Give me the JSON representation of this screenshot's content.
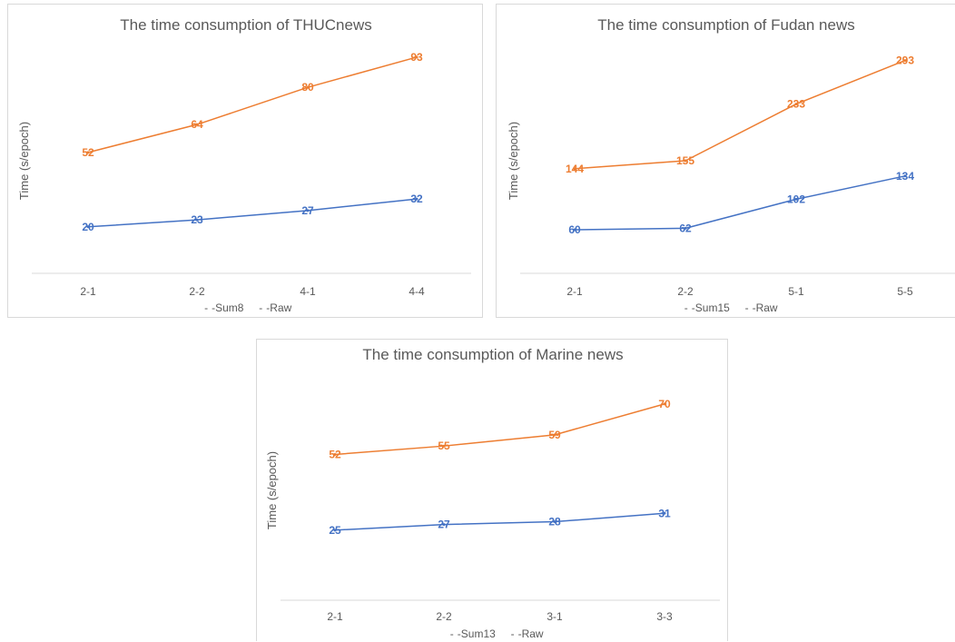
{
  "colors": {
    "sum": "#4472c4",
    "raw": "#ed7d31",
    "axis": "#d9d9d9",
    "text": "#595959"
  },
  "chart_data": [
    {
      "type": "line",
      "title": "The time consumption of THUCnews",
      "ylabel": "Time (s/epoch)",
      "xlabel": "",
      "categories": [
        "2-1",
        "2-2",
        "4-1",
        "4-4"
      ],
      "ylim": [
        0,
        100
      ],
      "grid": false,
      "legend": "bottom",
      "series": [
        {
          "name": "Sum8",
          "legend_label": "- -Sum8",
          "color": "#4472c4",
          "values": [
            20,
            23,
            27,
            32
          ]
        },
        {
          "name": "Raw",
          "legend_label": "- -Raw",
          "color": "#ed7d31",
          "values": [
            52,
            64,
            80,
            93
          ]
        }
      ]
    },
    {
      "type": "line",
      "title": "The time consumption of Fudan news",
      "ylabel": "Time (s/epoch)",
      "xlabel": "",
      "categories": [
        "2-1",
        "2-2",
        "5-1",
        "5-5"
      ],
      "ylim": [
        0,
        320
      ],
      "grid": false,
      "legend": "bottom",
      "series": [
        {
          "name": "Sum15",
          "legend_label": "- -Sum15",
          "color": "#4472c4",
          "values": [
            60,
            62,
            102,
            134
          ]
        },
        {
          "name": "Raw",
          "legend_label": "- -Raw",
          "color": "#ed7d31",
          "values": [
            144,
            155,
            233,
            293
          ]
        }
      ]
    },
    {
      "type": "line",
      "title": "The time consumption of Marine news",
      "ylabel": "Time (s/epoch)",
      "xlabel": "",
      "categories": [
        "2-1",
        "2-2",
        "3-1",
        "3-3"
      ],
      "ylim": [
        0,
        80
      ],
      "grid": false,
      "legend": "bottom",
      "series": [
        {
          "name": "Sum13",
          "legend_label": "- -Sum13",
          "color": "#4472c4",
          "values": [
            25,
            27,
            28,
            31
          ]
        },
        {
          "name": "Raw",
          "legend_label": "- -Raw",
          "color": "#ed7d31",
          "values": [
            52,
            55,
            59,
            70
          ]
        }
      ]
    }
  ]
}
